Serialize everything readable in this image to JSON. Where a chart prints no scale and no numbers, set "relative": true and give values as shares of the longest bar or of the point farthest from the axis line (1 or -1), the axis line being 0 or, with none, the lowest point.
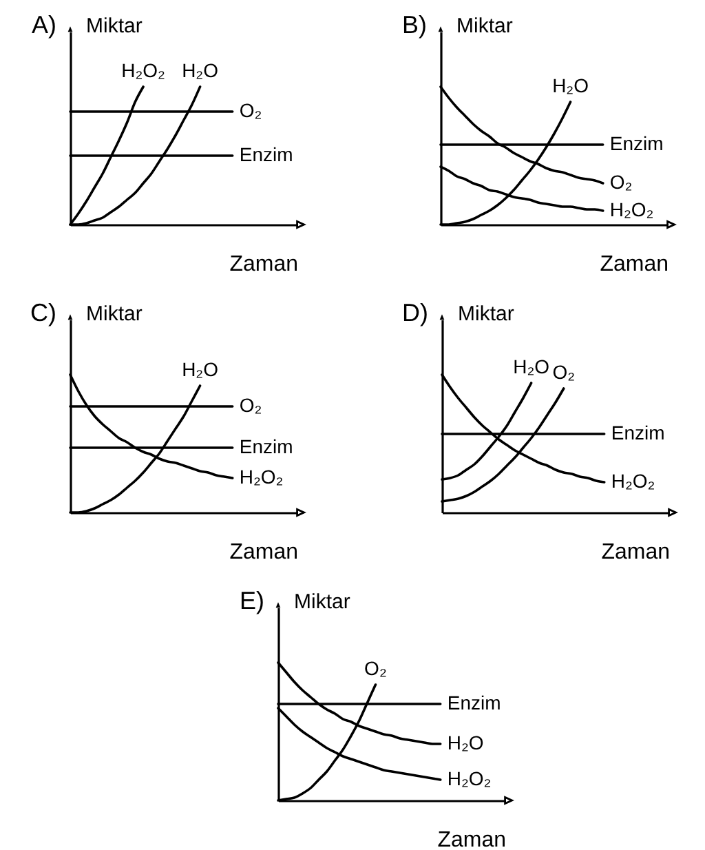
{
  "chart_data": [
    {
      "type": "line",
      "title": "A)",
      "xlabel": "Zaman",
      "ylabel": "Miktar",
      "relative": true,
      "tick_labels": false,
      "categories": [
        null,
        null,
        null,
        null,
        null,
        null,
        null,
        null,
        null,
        null,
        null,
        null,
        null,
        null,
        null,
        null,
        null,
        null,
        null,
        null,
        null
      ],
      "series": [
        {
          "name": "H₂O₂",
          "color": "#000000",
          "values": [
            0,
            0.08,
            0.17,
            0.27,
            0.37,
            0.49,
            0.61,
            0.74,
            0.89,
            1,
            null,
            null,
            null,
            null,
            null,
            null,
            null,
            null,
            null,
            null,
            null
          ]
        },
        {
          "name": "H₂O",
          "color": "#000000",
          "values": [
            0,
            0,
            0.01,
            0.03,
            0.05,
            0.09,
            0.13,
            0.18,
            0.23,
            0.3,
            0.37,
            0.46,
            0.55,
            0.65,
            0.76,
            0.87,
            1,
            null,
            null,
            null,
            null
          ]
        },
        {
          "name": "O₂",
          "color": "#000000",
          "values": [
            0.82,
            0.82,
            0.82,
            0.82,
            0.82,
            0.82,
            0.82,
            0.82,
            0.82,
            0.82,
            0.82,
            0.82,
            0.82,
            0.82,
            0.82,
            0.82,
            0.82,
            0.82,
            0.82,
            0.82,
            0.82
          ]
        },
        {
          "name": "Enzim",
          "color": "#000000",
          "values": [
            0.5,
            0.5,
            0.5,
            0.5,
            0.5,
            0.5,
            0.5,
            0.5,
            0.5,
            0.5,
            0.5,
            0.5,
            0.5,
            0.5,
            0.5,
            0.5,
            0.5,
            0.5,
            0.5,
            0.5,
            0.5
          ]
        }
      ]
    },
    {
      "type": "line",
      "title": "B)",
      "xlabel": "Zaman",
      "ylabel": "Miktar",
      "relative": true,
      "tick_labels": false,
      "categories": [
        null,
        null,
        null,
        null,
        null,
        null,
        null,
        null,
        null,
        null,
        null,
        null,
        null,
        null,
        null,
        null,
        null,
        null,
        null,
        null,
        null
      ],
      "series": [
        {
          "name": "H₂O",
          "color": "#000000",
          "values": [
            0,
            0,
            0.01,
            0.02,
            0.04,
            0.07,
            0.1,
            0.14,
            0.19,
            0.25,
            0.32,
            0.39,
            0.47,
            0.56,
            0.66,
            0.77,
            0.89,
            null,
            null,
            null,
            null
          ]
        },
        {
          "name": "Enzim",
          "color": "#000000",
          "values": [
            0.58,
            0.58,
            0.58,
            0.58,
            0.58,
            0.58,
            0.58,
            0.58,
            0.58,
            0.58,
            0.58,
            0.58,
            0.58,
            0.58,
            0.58,
            0.58,
            0.58,
            0.58,
            0.58,
            0.58,
            0.58
          ]
        },
        {
          "name": "O₂",
          "color": "#000000",
          "values": [
            1,
            0.92,
            0.85,
            0.79,
            0.73,
            0.68,
            0.64,
            0.59,
            0.56,
            0.52,
            0.49,
            0.46,
            0.44,
            0.41,
            0.39,
            0.38,
            0.36,
            0.34,
            0.33,
            0.32,
            0.3
          ]
        },
        {
          "name": "H₂O₂",
          "color": "#000000",
          "values": [
            0.42,
            0.39,
            0.35,
            0.33,
            0.3,
            0.28,
            0.25,
            0.24,
            0.22,
            0.2,
            0.19,
            0.18,
            0.16,
            0.15,
            0.14,
            0.13,
            0.13,
            0.12,
            0.11,
            0.11,
            0.1
          ]
        }
      ]
    },
    {
      "type": "line",
      "title": "C)",
      "xlabel": "Zaman",
      "ylabel": "Miktar",
      "relative": true,
      "tick_labels": false,
      "categories": [
        null,
        null,
        null,
        null,
        null,
        null,
        null,
        null,
        null,
        null,
        null,
        null,
        null,
        null,
        null,
        null,
        null,
        null,
        null,
        null,
        null
      ],
      "series": [
        {
          "name": "H₂O",
          "color": "#000000",
          "values": [
            0,
            0,
            0.01,
            0.03,
            0.06,
            0.09,
            0.13,
            0.18,
            0.23,
            0.29,
            0.36,
            0.43,
            0.52,
            0.61,
            0.7,
            0.81,
            0.92,
            null,
            null,
            null,
            null
          ]
        },
        {
          "name": "O₂",
          "color": "#000000",
          "values": [
            0.77,
            0.77,
            0.77,
            0.77,
            0.77,
            0.77,
            0.77,
            0.77,
            0.77,
            0.77,
            0.77,
            0.77,
            0.77,
            0.77,
            0.77,
            0.77,
            0.77,
            0.77,
            0.77,
            0.77,
            0.77
          ]
        },
        {
          "name": "Enzim",
          "color": "#000000",
          "values": [
            0.47,
            0.47,
            0.47,
            0.47,
            0.47,
            0.47,
            0.47,
            0.47,
            0.47,
            0.47,
            0.47,
            0.47,
            0.47,
            0.47,
            0.47,
            0.47,
            0.47,
            0.47,
            0.47,
            0.47,
            0.47
          ]
        },
        {
          "name": "H₂O₂",
          "color": "#000000",
          "values": [
            1,
            0.88,
            0.78,
            0.7,
            0.64,
            0.59,
            0.54,
            0.51,
            0.47,
            0.44,
            0.42,
            0.39,
            0.37,
            0.36,
            0.34,
            0.32,
            0.3,
            0.29,
            0.27,
            0.26,
            0.25
          ]
        }
      ]
    },
    {
      "type": "line",
      "title": "D)",
      "xlabel": "Zaman",
      "ylabel": "Miktar",
      "relative": true,
      "tick_labels": false,
      "categories": [
        null,
        null,
        null,
        null,
        null,
        null,
        null,
        null,
        null,
        null,
        null,
        null,
        null,
        null,
        null,
        null,
        null,
        null,
        null,
        null,
        null
      ],
      "series": [
        {
          "name": "H₂O",
          "color": "#000000",
          "values": [
            0.24,
            0.25,
            0.27,
            0.31,
            0.35,
            0.41,
            0.48,
            0.55,
            0.63,
            0.73,
            0.83,
            0.94,
            null,
            null,
            null,
            null,
            null,
            null,
            null,
            null,
            null
          ]
        },
        {
          "name": "O₂",
          "color": "#000000",
          "values": [
            0.08,
            0.09,
            0.1,
            0.12,
            0.15,
            0.19,
            0.23,
            0.28,
            0.34,
            0.4,
            0.47,
            0.54,
            0.62,
            0.71,
            0.8,
            0.9,
            null,
            null,
            null,
            null,
            null
          ]
        },
        {
          "name": "Enzim",
          "color": "#000000",
          "values": [
            0.57,
            0.57,
            0.57,
            0.57,
            0.57,
            0.57,
            0.57,
            0.57,
            0.57,
            0.57,
            0.57,
            0.57,
            0.57,
            0.57,
            0.57,
            0.57,
            0.57,
            0.57,
            0.57,
            0.57,
            0.57
          ]
        },
        {
          "name": "H₂O₂",
          "color": "#000000",
          "values": [
            1,
            0.91,
            0.83,
            0.76,
            0.69,
            0.63,
            0.58,
            0.53,
            0.49,
            0.45,
            0.42,
            0.39,
            0.36,
            0.34,
            0.31,
            0.29,
            0.28,
            0.26,
            0.25,
            0.23,
            0.22
          ]
        }
      ]
    },
    {
      "type": "line",
      "title": "E)",
      "xlabel": "Zaman",
      "ylabel": "Miktar",
      "relative": true,
      "tick_labels": false,
      "categories": [
        null,
        null,
        null,
        null,
        null,
        null,
        null,
        null,
        null,
        null,
        null,
        null,
        null,
        null,
        null,
        null,
        null,
        null,
        null,
        null,
        null
      ],
      "series": [
        {
          "name": "O₂",
          "color": "#000000",
          "values": [
            0,
            0.01,
            0.02,
            0.05,
            0.09,
            0.15,
            0.21,
            0.29,
            0.37,
            0.47,
            0.58,
            0.71,
            0.84,
            null,
            null,
            null,
            null,
            null,
            null,
            null,
            null
          ]
        },
        {
          "name": "Enzim",
          "color": "#000000",
          "values": [
            0.7,
            0.7,
            0.7,
            0.7,
            0.7,
            0.7,
            0.7,
            0.7,
            0.7,
            0.7,
            0.7,
            0.7,
            0.7,
            0.7,
            0.7,
            0.7,
            0.7,
            0.7,
            0.7,
            0.7,
            0.7
          ]
        },
        {
          "name": "H₂O",
          "color": "#000000",
          "values": [
            1,
            0.93,
            0.86,
            0.8,
            0.75,
            0.7,
            0.66,
            0.63,
            0.59,
            0.57,
            0.54,
            0.52,
            0.5,
            0.48,
            0.47,
            0.45,
            0.44,
            0.43,
            0.42,
            0.41,
            0.41
          ]
        },
        {
          "name": "H₂O₂",
          "color": "#000000",
          "values": [
            0.67,
            0.61,
            0.55,
            0.5,
            0.46,
            0.42,
            0.38,
            0.35,
            0.32,
            0.3,
            0.28,
            0.26,
            0.24,
            0.22,
            0.21,
            0.2,
            0.19,
            0.18,
            0.17,
            0.16,
            0.15
          ]
        }
      ]
    }
  ]
}
